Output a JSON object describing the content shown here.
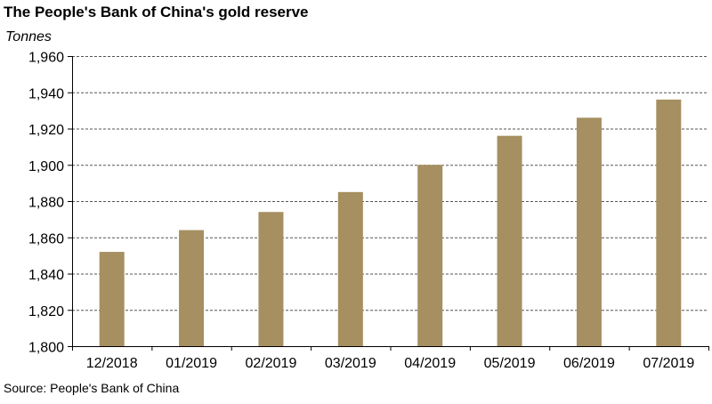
{
  "title": "The People's Bank of China's gold reserve",
  "source": "Source: People's Bank of China",
  "chart_data": {
    "type": "bar",
    "title": "The People's Bank of China's gold reserve",
    "ylabel": "Tonnes",
    "xlabel": "",
    "categories": [
      "12/2018",
      "01/2019",
      "02/2019",
      "03/2019",
      "04/2019",
      "05/2019",
      "06/2019",
      "07/2019"
    ],
    "values": [
      1852,
      1864,
      1874,
      1885,
      1900,
      1916,
      1926,
      1936
    ],
    "ylim": [
      1800,
      1960
    ],
    "yticks": [
      1800,
      1820,
      1840,
      1860,
      1880,
      1900,
      1920,
      1940,
      1960
    ],
    "ytick_labels": [
      "1,800",
      "1,820",
      "1,840",
      "1,860",
      "1,880",
      "1,900",
      "1,920",
      "1,940",
      "1,960"
    ],
    "grid": true,
    "bar_color": "#A68F60"
  }
}
